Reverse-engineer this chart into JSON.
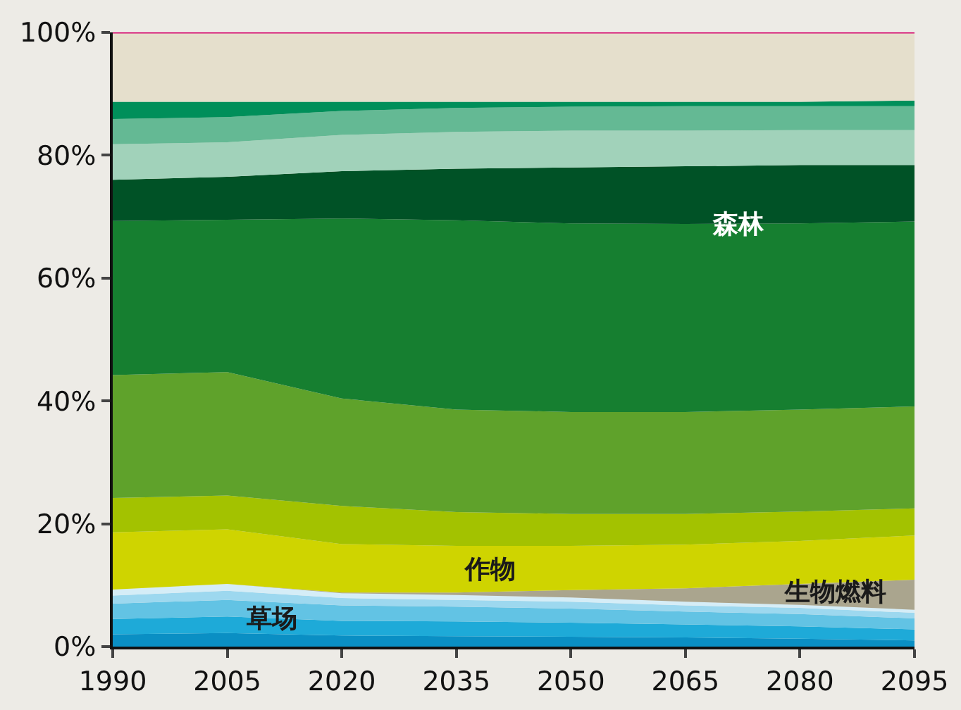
{
  "chart_data": {
    "type": "area",
    "stacked": true,
    "x": [
      1990,
      2005,
      2020,
      2035,
      2050,
      2065,
      2080,
      2095
    ],
    "xlim": [
      1990,
      2095
    ],
    "xticks": [
      1990,
      2005,
      2020,
      2035,
      2050,
      2065,
      2080,
      2095
    ],
    "ylim": [
      0,
      100
    ],
    "yticks": [
      {
        "value": 0,
        "label": "0%"
      },
      {
        "value": 20,
        "label": "20%"
      },
      {
        "value": 40,
        "label": "40%"
      },
      {
        "value": 60,
        "label": "60%"
      },
      {
        "value": 80,
        "label": "80%"
      },
      {
        "value": 100,
        "label": "100%"
      }
    ],
    "series": [
      {
        "color": "#0a8fc4",
        "values": [
          2.0,
          2.2,
          1.8,
          1.7,
          1.6,
          1.5,
          1.3,
          1.0
        ]
      },
      {
        "color": "#1eaad8",
        "values": [
          2.5,
          2.7,
          2.4,
          2.4,
          2.3,
          2.1,
          2.0,
          1.8
        ]
      },
      {
        "color": "#62c3e4",
        "values": [
          2.5,
          2.7,
          2.5,
          2.4,
          2.3,
          2.1,
          2.0,
          1.8
        ]
      },
      {
        "color": "#9dd8ef",
        "values": [
          1.3,
          1.5,
          1.2,
          1.1,
          1.1,
          1.0,
          1.0,
          0.9
        ]
      },
      {
        "color": "#d5edf7",
        "values": [
          1.0,
          1.1,
          0.8,
          0.8,
          0.7,
          0.6,
          0.5,
          0.5
        ]
      },
      {
        "color": "#aaa58e",
        "values": [
          0,
          0,
          0.1,
          0.4,
          1.2,
          2.2,
          3.4,
          4.9
        ]
      },
      {
        "color": "#cfd400",
        "values": [
          9.3,
          8.9,
          7.9,
          7.6,
          7.2,
          7.1,
          7.0,
          7.2
        ]
      },
      {
        "color": "#a3c200",
        "values": [
          5.6,
          5.5,
          6.2,
          5.5,
          5.2,
          5.0,
          4.8,
          4.4
        ]
      },
      {
        "color": "#5fa22b",
        "values": [
          20.0,
          20.1,
          17.5,
          16.7,
          16.6,
          16.6,
          16.6,
          16.6
        ]
      },
      {
        "color": "#167f30",
        "values": [
          25.1,
          24.8,
          29.3,
          30.8,
          30.7,
          30.6,
          30.3,
          30.1
        ]
      },
      {
        "color": "#005226",
        "values": [
          6.7,
          7.0,
          7.7,
          8.4,
          9.1,
          9.4,
          9.5,
          9.2
        ]
      },
      {
        "color": "#a1d2ba",
        "values": [
          5.8,
          5.6,
          5.9,
          6.0,
          6.0,
          5.8,
          5.7,
          5.7
        ]
      },
      {
        "color": "#64b994",
        "values": [
          4.1,
          4.1,
          3.9,
          3.9,
          3.9,
          4.0,
          3.9,
          3.9
        ]
      },
      {
        "color": "#008f5a",
        "values": [
          2.8,
          2.5,
          1.5,
          1.0,
          0.8,
          0.7,
          0.7,
          0.9
        ]
      },
      {
        "color": "#e5dfcc",
        "values": [
          11.3,
          11.3,
          11.3,
          11.3,
          11.3,
          11.3,
          11.3,
          11.1
        ]
      }
    ],
    "ref_lines": [
      {
        "axis": "y",
        "value": 100,
        "color": "#d4006a"
      }
    ],
    "annotations": [
      {
        "text": "草场",
        "x": 2010.7,
        "y": 4.4
      },
      "作物",
      "生物燃料",
      {
        "text": "森林",
        "x": 2072,
        "y": 68.6
      }
    ]
  }
}
